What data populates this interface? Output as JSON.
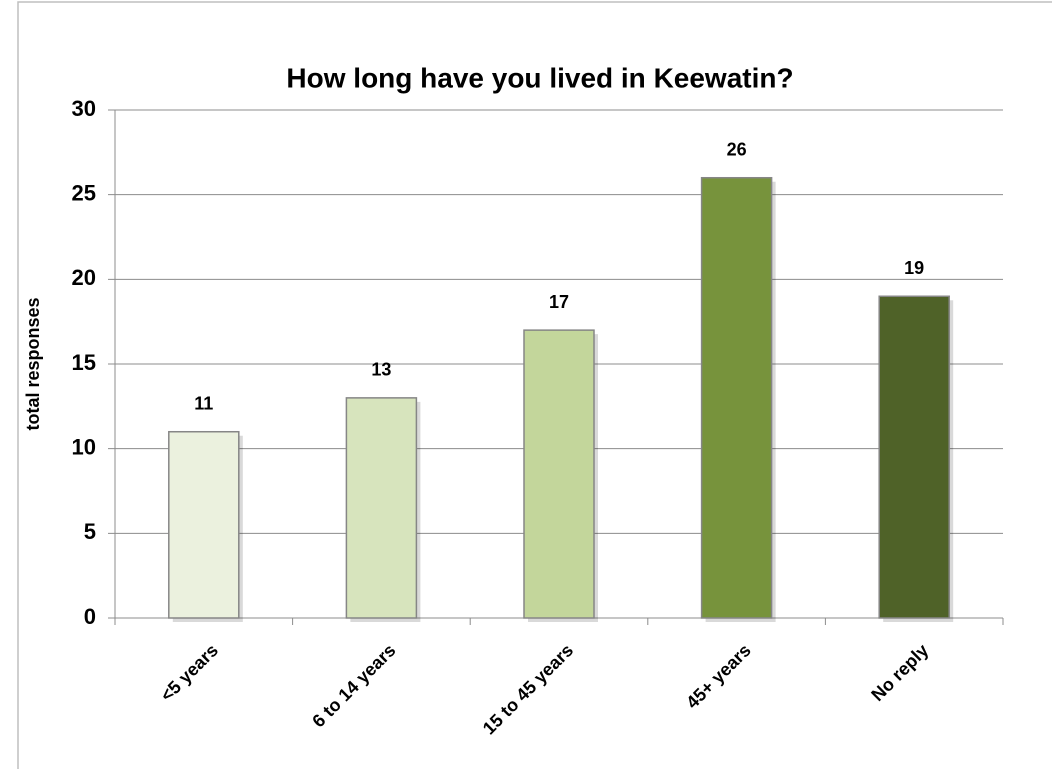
{
  "chart_data": {
    "type": "bar",
    "title": "How long have you lived in Keewatin?",
    "ylabel": "total responses",
    "categories": [
      "<5 years",
      "6 to 14 years",
      "15 to 45 years",
      "45+ years",
      "No reply"
    ],
    "values": [
      11,
      13,
      17,
      26,
      19
    ],
    "colors": [
      "#ebf1de",
      "#d7e4bd",
      "#c3d69b",
      "#77933c",
      "#4f6228"
    ],
    "ylim": [
      0,
      30
    ],
    "yticks": [
      0,
      5,
      10,
      15,
      20,
      25,
      30
    ],
    "grid": true
  }
}
